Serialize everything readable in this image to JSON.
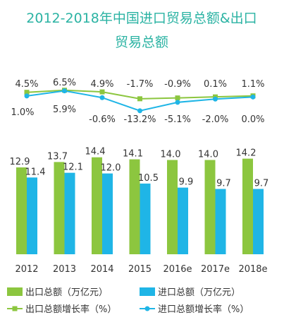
{
  "chart_data": [
    {
      "type": "bar",
      "title_line1": "2012-2018年中国进口贸易总额&出口",
      "title_line2": "贸易总额",
      "categories": [
        "2012",
        "2013",
        "2014",
        "2015",
        "2016e",
        "2017e",
        "2018e"
      ],
      "series": [
        {
          "name": "出口总额（万亿元）",
          "values": [
            12.9,
            13.7,
            14.4,
            14.1,
            14.0,
            14.0,
            14.2
          ],
          "color": "#8cc63f"
        },
        {
          "name": "进口总额（万亿元）",
          "values": [
            11.4,
            12.1,
            12.0,
            10.5,
            9.9,
            9.7,
            9.7
          ],
          "color": "#1fb5e6"
        }
      ],
      "value_labels": {
        "export": [
          "12.9",
          "13.7",
          "14.4",
          "14.1",
          "14.0",
          "14.0",
          "14.2"
        ],
        "import": [
          "11.4",
          "12.1",
          "12.0",
          "10.5",
          "9.9",
          "9.7",
          "9.7"
        ]
      },
      "ylim": [
        0,
        15
      ],
      "grid": false
    },
    {
      "type": "line",
      "categories": [
        "2012",
        "2013",
        "2014",
        "2015",
        "2016e",
        "2017e",
        "2018e"
      ],
      "series": [
        {
          "name": "出口总额增长率（%）",
          "values": [
            4.5,
            6.5,
            4.9,
            -1.7,
            -0.9,
            0.1,
            1.1
          ],
          "labels": [
            "4.5%",
            "6.5%",
            "4.9%",
            "-1.7%",
            "-0.9%",
            "0.1%",
            "1.1%"
          ],
          "color": "#8cc63f",
          "marker": "square"
        },
        {
          "name": "进口总额增长率（%）",
          "values": [
            1.0,
            5.9,
            -0.6,
            -13.2,
            -5.1,
            -2.0,
            0.0
          ],
          "labels": [
            "1.0%",
            "5.9%",
            "-0.6%",
            "-13.2%",
            "-5.1%",
            "-2.0%",
            "0.0%"
          ],
          "color": "#1fb5e6",
          "marker": "circle"
        }
      ],
      "ylim": [
        -14,
        7
      ],
      "grid": false
    }
  ],
  "legend": {
    "placement": "bottom",
    "items": [
      {
        "label": "出口总额（万亿元）",
        "color": "#8cc63f",
        "marker": "bar"
      },
      {
        "label": "进口总额（万亿元）",
        "color": "#1fb5e6",
        "marker": "bar"
      },
      {
        "label": "出口总额增长率（%）",
        "color": "#8cc63f",
        "marker": "line-square"
      },
      {
        "label": "进口总额增长率（%）",
        "color": "#1fb5e6",
        "marker": "line-circle"
      }
    ]
  },
  "colors": {
    "title": "#2bb3a3",
    "axis_text": "#333333",
    "value_text": "#333333"
  }
}
